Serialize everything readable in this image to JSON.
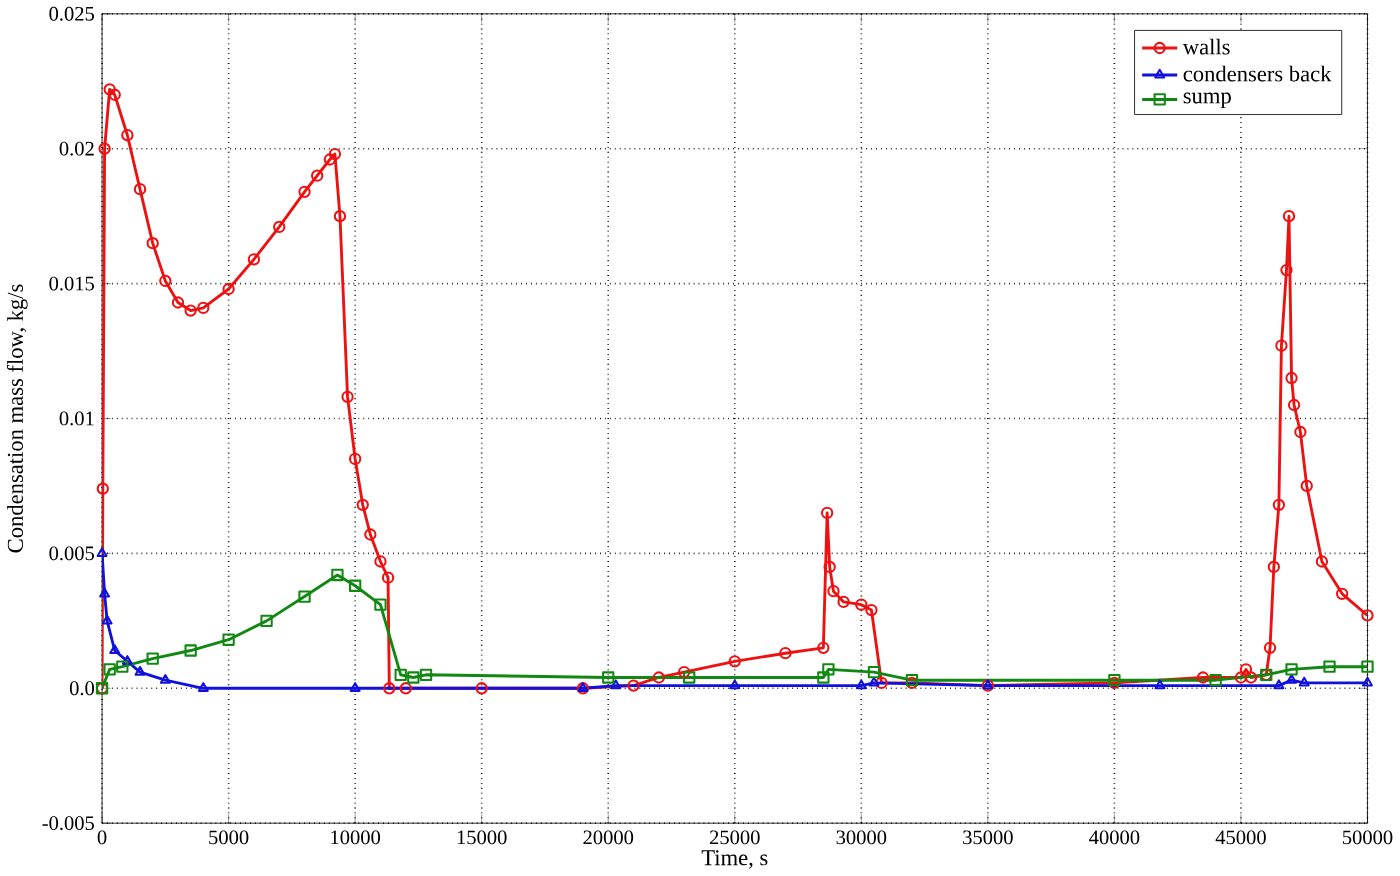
{
  "chart_data": {
    "type": "line",
    "xlabel": "Time, s",
    "ylabel": "Condensation mass flow, kg/s",
    "xlim": [
      0,
      50000
    ],
    "ylim": [
      -0.005,
      0.025
    ],
    "xticks": [
      0,
      5000,
      10000,
      15000,
      20000,
      25000,
      30000,
      35000,
      40000,
      45000,
      50000
    ],
    "yticks": [
      -0.005,
      {
        "value": 0,
        "label": "0.0"
      },
      0.005,
      0.01,
      0.015,
      0.02,
      0.025
    ],
    "grid": true,
    "legend": "top right",
    "series": [
      {
        "name": "walls",
        "color": "#ee1111",
        "marker": "circle",
        "x": [
          0,
          30,
          100,
          300,
          500,
          1000,
          1500,
          2000,
          2500,
          3000,
          3500,
          4000,
          5000,
          6000,
          7000,
          8000,
          8500,
          9000,
          9200,
          9400,
          9700,
          10000,
          10300,
          10600,
          11000,
          11300,
          11350,
          12000,
          15000,
          19000,
          21000,
          22000,
          23000,
          25000,
          27000,
          28500,
          28650,
          28750,
          28900,
          29300,
          30000,
          30400,
          30800,
          32000,
          35000,
          40000,
          43500,
          45000,
          45200,
          45400,
          46000,
          46150,
          46300,
          46500,
          46600,
          46800,
          46900,
          47000,
          47100,
          47350,
          47600,
          48200,
          49000,
          50000
        ],
        "values": [
          0,
          0.0074,
          0.02,
          0.0222,
          0.022,
          0.0205,
          0.0185,
          0.0165,
          0.0151,
          0.0143,
          0.014,
          0.0141,
          0.0148,
          0.0159,
          0.0171,
          0.0184,
          0.019,
          0.0196,
          0.0198,
          0.0175,
          0.0108,
          0.0085,
          0.0068,
          0.0057,
          0.0047,
          0.0041,
          0,
          0,
          0,
          0,
          0.0001,
          0.0004,
          0.0006,
          0.001,
          0.0013,
          0.0015,
          0.0065,
          0.0045,
          0.0036,
          0.0032,
          0.0031,
          0.0029,
          0.0002,
          0.0002,
          0.0001,
          0.0002,
          0.0004,
          0.0004,
          0.0007,
          0.0004,
          0.0005,
          0.0015,
          0.0045,
          0.0068,
          0.0127,
          0.0155,
          0.0175,
          0.0115,
          0.0105,
          0.0095,
          0.0075,
          0.0047,
          0.0035,
          0.0027
        ]
      },
      {
        "name": "condensers back",
        "color": "#1111dd",
        "marker": "triangle",
        "x": [
          0,
          100,
          200,
          500,
          1000,
          1500,
          2500,
          4000,
          10000,
          19000,
          20300,
          25000,
          30000,
          30500,
          35000,
          41800,
          46500,
          47000,
          47500,
          50000
        ],
        "values": [
          0.005,
          0.0035,
          0.0025,
          0.0014,
          0.001,
          0.0006,
          0.0003,
          0,
          0,
          0,
          0.0001,
          0.0001,
          0.0001,
          0.0002,
          0.0001,
          0.0001,
          0.0001,
          0.0003,
          0.0002,
          0.0002
        ]
      },
      {
        "name": "sump",
        "color": "#118811",
        "marker": "square",
        "x": [
          0,
          300,
          800,
          2000,
          3500,
          5000,
          6500,
          8000,
          9300,
          10000,
          11000,
          11800,
          12300,
          12800,
          20000,
          23200,
          28500,
          28700,
          30500,
          32000,
          40000,
          44000,
          46000,
          47000,
          48500,
          50000
        ],
        "values": [
          0,
          0.0007,
          0.0008,
          0.0011,
          0.0014,
          0.0018,
          0.0025,
          0.0034,
          0.0042,
          0.0038,
          0.0031,
          0.0005,
          0.0004,
          0.0005,
          0.0004,
          0.0004,
          0.0004,
          0.0007,
          0.0006,
          0.0003,
          0.0003,
          0.0003,
          0.0005,
          0.0007,
          0.0008,
          0.0008
        ]
      }
    ]
  }
}
